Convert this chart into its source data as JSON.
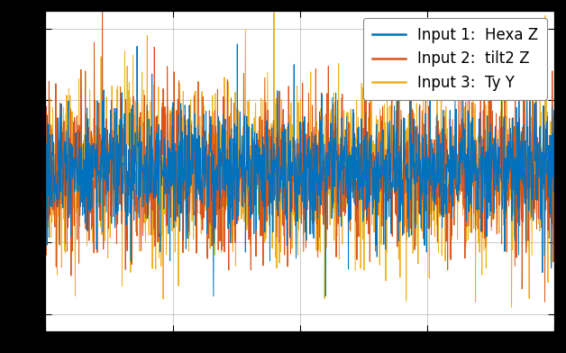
{
  "title": "",
  "legend_entries": [
    "Input 1:  Hexa Z",
    "Input 2:  tilt2 Z",
    "Input 3:  Ty Y"
  ],
  "colors": [
    "#0072BD",
    "#D95319",
    "#EDB120"
  ],
  "n_samples": 1500,
  "seed": 42,
  "background_color": "#ffffff",
  "outer_background": "#000000",
  "grid_color": "#c0c0c0",
  "linewidth": 0.7,
  "legend_fontsize": 12,
  "tick_fontsize": 10,
  "ylim": [
    -4.5,
    4.5
  ]
}
